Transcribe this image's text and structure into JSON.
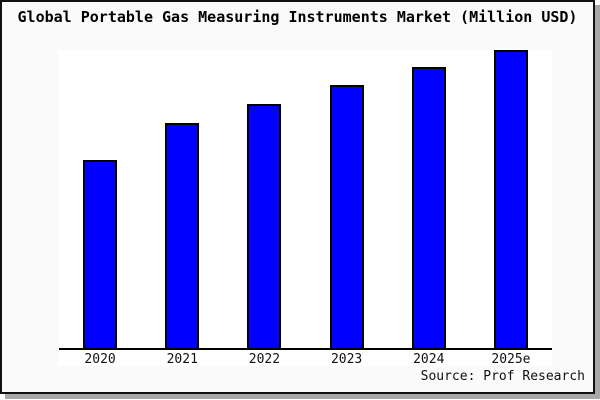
{
  "window": {
    "background": "#fafafa",
    "plot_background": "#ffffff",
    "frame_border_color": "#111111",
    "shadow_color": "#a8a8a8"
  },
  "chart": {
    "title": "Global Portable Gas Measuring Instruments Market (Million USD)",
    "source": "Source: Prof Research"
  },
  "chart_data": {
    "type": "bar",
    "title": "Global Portable Gas Measuring Instruments Market (Million USD)",
    "categories": [
      "2020",
      "2021",
      "2022",
      "2023",
      "2024",
      "2025e"
    ],
    "values": [
      62.7,
      75.0,
      81.3,
      87.7,
      93.7,
      99.3
    ],
    "values_unit": "percent of plot height (chart shows no y-axis scale or value labels; values estimated from bar pixel heights)",
    "xlabel": "",
    "ylabel": "",
    "ylim": [
      0,
      100
    ],
    "grid": false,
    "legend": false,
    "bar_color": "#0000ff",
    "bar_border_color": "#000000",
    "axis_line_color": "#000000",
    "annotations": [
      "Source: Prof Research"
    ]
  }
}
